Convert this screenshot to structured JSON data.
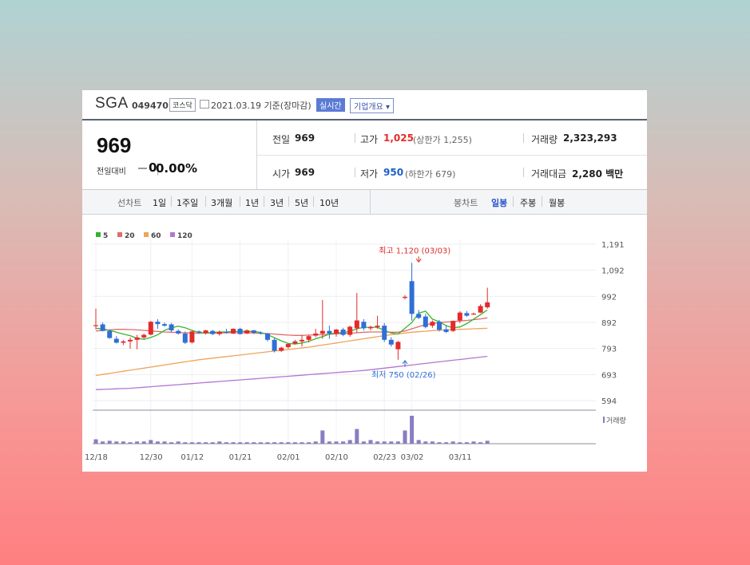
{
  "stock": {
    "name": "SGA",
    "code": "049470",
    "market": "코스닥",
    "date": "2021.03.19 기준(장마감)",
    "realtime_label": "실시간",
    "company_label": "기업개요 ▾"
  },
  "quote": {
    "current": "969",
    "change_label": "전일대비",
    "change_value": "0",
    "change_pct": "0.00%",
    "prev_label": "전일",
    "prev": "969",
    "high_label": "고가",
    "high": "1,025",
    "upper_limit": "(상한가 1,255)",
    "volume_label": "거래량",
    "volume": "2,323,293",
    "open_label": "시가",
    "open": "969",
    "low_label": "저가",
    "low": "950",
    "lower_limit": "(하한가 679)",
    "amount_label": "거래대금",
    "amount": "2,280 백만"
  },
  "tabs": {
    "line_label": "선차트",
    "line_periods": [
      "1일",
      "1주일",
      "3개월",
      "1년",
      "3년",
      "5년",
      "10년"
    ],
    "candle_label": "봉차트",
    "candle_periods": [
      "일봉",
      "주봉",
      "월봉"
    ],
    "candle_active": 0
  },
  "colors": {
    "up": "#e42a2a",
    "down": "#2f6fd6",
    "ma5": "#37b32e",
    "ma20": "#e36a6a",
    "ma60": "#f0a35a",
    "ma120": "#b177d3",
    "volume": "#8a7dc0"
  },
  "chart_data": {
    "type": "candlestick",
    "y_ticks": [
      "1,191",
      "1,092",
      "992",
      "892",
      "793",
      "693",
      "594"
    ],
    "ylim": [
      594,
      1191
    ],
    "legend": [
      {
        "label": "5",
        "color": "#37b32e"
      },
      {
        "label": "20",
        "color": "#e36a6a"
      },
      {
        "label": "60",
        "color": "#f0a35a"
      },
      {
        "label": "120",
        "color": "#b177d3"
      }
    ],
    "x_labels": [
      {
        "label": "12/18",
        "index": 0
      },
      {
        "label": "12/30",
        "index": 8
      },
      {
        "label": "01/12",
        "index": 14
      },
      {
        "label": "01/21",
        "index": 21
      },
      {
        "label": "02/01",
        "index": 28
      },
      {
        "label": "02/10",
        "index": 35
      },
      {
        "label": "02/23",
        "index": 42
      },
      {
        "label": "03/02",
        "index": 46
      },
      {
        "label": "03/11",
        "index": 53
      }
    ],
    "annotations": {
      "high_label": "최고 1,120 (03/03)",
      "high_value": 1120,
      "high_index": 47,
      "low_label": "최저 750 (02/26)",
      "low_value": 750,
      "low_index": 45
    },
    "volume_label": "거래량",
    "candles": [
      {
        "o": 880,
        "h": 945,
        "l": 866,
        "c": 882
      },
      {
        "o": 885,
        "h": 892,
        "l": 858,
        "c": 860
      },
      {
        "o": 860,
        "h": 865,
        "l": 830,
        "c": 833
      },
      {
        "o": 830,
        "h": 840,
        "l": 812,
        "c": 815
      },
      {
        "o": 815,
        "h": 825,
        "l": 806,
        "c": 820
      },
      {
        "o": 820,
        "h": 835,
        "l": 792,
        "c": 826
      },
      {
        "o": 826,
        "h": 845,
        "l": 790,
        "c": 835
      },
      {
        "o": 835,
        "h": 850,
        "l": 830,
        "c": 845
      },
      {
        "o": 846,
        "h": 898,
        "l": 843,
        "c": 895
      },
      {
        "o": 895,
        "h": 905,
        "l": 868,
        "c": 886
      },
      {
        "o": 886,
        "h": 892,
        "l": 876,
        "c": 880
      },
      {
        "o": 885,
        "h": 890,
        "l": 856,
        "c": 862
      },
      {
        "o": 860,
        "h": 866,
        "l": 846,
        "c": 850
      },
      {
        "o": 850,
        "h": 858,
        "l": 810,
        "c": 815
      },
      {
        "o": 816,
        "h": 862,
        "l": 812,
        "c": 858
      },
      {
        "o": 858,
        "h": 862,
        "l": 850,
        "c": 854
      },
      {
        "o": 852,
        "h": 864,
        "l": 846,
        "c": 862
      },
      {
        "o": 860,
        "h": 864,
        "l": 844,
        "c": 848
      },
      {
        "o": 848,
        "h": 862,
        "l": 842,
        "c": 856
      },
      {
        "o": 856,
        "h": 868,
        "l": 850,
        "c": 855
      },
      {
        "o": 850,
        "h": 870,
        "l": 848,
        "c": 868
      },
      {
        "o": 868,
        "h": 872,
        "l": 846,
        "c": 848
      },
      {
        "o": 850,
        "h": 866,
        "l": 848,
        "c": 862
      },
      {
        "o": 862,
        "h": 864,
        "l": 848,
        "c": 853
      },
      {
        "o": 853,
        "h": 858,
        "l": 846,
        "c": 850
      },
      {
        "o": 850,
        "h": 852,
        "l": 820,
        "c": 826
      },
      {
        "o": 826,
        "h": 834,
        "l": 778,
        "c": 784
      },
      {
        "o": 784,
        "h": 800,
        "l": 780,
        "c": 796
      },
      {
        "o": 798,
        "h": 812,
        "l": 792,
        "c": 810
      },
      {
        "o": 812,
        "h": 826,
        "l": 808,
        "c": 820
      },
      {
        "o": 820,
        "h": 844,
        "l": 800,
        "c": 826
      },
      {
        "o": 826,
        "h": 844,
        "l": 816,
        "c": 840
      },
      {
        "o": 842,
        "h": 868,
        "l": 836,
        "c": 850
      },
      {
        "o": 850,
        "h": 978,
        "l": 830,
        "c": 860
      },
      {
        "o": 860,
        "h": 880,
        "l": 830,
        "c": 850
      },
      {
        "o": 850,
        "h": 868,
        "l": 838,
        "c": 865
      },
      {
        "o": 865,
        "h": 872,
        "l": 840,
        "c": 845
      },
      {
        "o": 845,
        "h": 880,
        "l": 838,
        "c": 876
      },
      {
        "o": 870,
        "h": 1005,
        "l": 852,
        "c": 900
      },
      {
        "o": 895,
        "h": 905,
        "l": 862,
        "c": 870
      },
      {
        "o": 870,
        "h": 880,
        "l": 862,
        "c": 875
      },
      {
        "o": 875,
        "h": 918,
        "l": 868,
        "c": 880
      },
      {
        "o": 880,
        "h": 890,
        "l": 818,
        "c": 826
      },
      {
        "o": 826,
        "h": 836,
        "l": 800,
        "c": 808
      },
      {
        "o": 790,
        "h": 822,
        "l": 750,
        "c": 818
      },
      {
        "o": 986,
        "h": 996,
        "l": 980,
        "c": 990
      },
      {
        "o": 1050,
        "h": 1120,
        "l": 900,
        "c": 925
      },
      {
        "o": 925,
        "h": 940,
        "l": 905,
        "c": 910
      },
      {
        "o": 915,
        "h": 925,
        "l": 870,
        "c": 875
      },
      {
        "o": 880,
        "h": 900,
        "l": 872,
        "c": 895
      },
      {
        "o": 895,
        "h": 902,
        "l": 858,
        "c": 864
      },
      {
        "o": 866,
        "h": 880,
        "l": 852,
        "c": 856
      },
      {
        "o": 860,
        "h": 900,
        "l": 856,
        "c": 898
      },
      {
        "o": 900,
        "h": 935,
        "l": 890,
        "c": 930
      },
      {
        "o": 928,
        "h": 936,
        "l": 914,
        "c": 918
      },
      {
        "o": 924,
        "h": 930,
        "l": 922,
        "c": 926
      },
      {
        "o": 930,
        "h": 962,
        "l": 928,
        "c": 955
      },
      {
        "o": 950,
        "h": 1025,
        "l": 945,
        "c": 969
      }
    ],
    "ma5": [
      870,
      868,
      862,
      855,
      848,
      842,
      832,
      828,
      835,
      845,
      862,
      872,
      878,
      872,
      862,
      854,
      852,
      854,
      856,
      856,
      858,
      858,
      858,
      858,
      854,
      846,
      834,
      822,
      812,
      810,
      814,
      820,
      830,
      838,
      848,
      852,
      854,
      858,
      868,
      874,
      874,
      874,
      862,
      852,
      848,
      870,
      892,
      928,
      935,
      905,
      895,
      880,
      872,
      875,
      888,
      905,
      922,
      940
    ],
    "ma20": [
      860,
      862,
      864,
      866,
      866,
      865,
      864,
      862,
      860,
      858,
      856,
      855,
      854,
      853,
      852,
      851,
      852,
      852,
      852,
      853,
      853,
      853,
      853,
      852,
      851,
      850,
      848,
      846,
      844,
      843,
      843,
      844,
      845,
      846,
      847,
      849,
      850,
      851,
      853,
      855,
      856,
      856,
      856,
      855,
      855,
      860,
      868,
      876,
      884,
      888,
      892,
      894,
      896,
      898,
      900,
      903,
      906,
      910
    ],
    "ma60": [
      690,
      694,
      698,
      702,
      706,
      710,
      714,
      718,
      722,
      726,
      730,
      734,
      738,
      742,
      746,
      750,
      753,
      756,
      759,
      762,
      765,
      768,
      771,
      774,
      777,
      780,
      783,
      786,
      789,
      792,
      795,
      798,
      802,
      806,
      810,
      814,
      818,
      822,
      826,
      830,
      834,
      838,
      842,
      846,
      849,
      852,
      855,
      857,
      859,
      861,
      863,
      864,
      865,
      866,
      867,
      868,
      869,
      870
    ],
    "ma120": [
      636,
      637,
      638,
      639,
      640,
      641,
      643,
      645,
      647,
      649,
      651,
      653,
      655,
      657,
      659,
      661,
      663,
      665,
      667,
      669,
      671,
      673,
      675,
      677,
      679,
      681,
      683,
      685,
      687,
      689,
      691,
      693,
      695,
      697,
      699,
      701,
      703,
      705,
      707,
      709,
      712,
      715,
      718,
      721,
      724,
      727,
      730,
      733,
      736,
      739,
      742,
      745,
      748,
      751,
      754,
      757,
      760,
      763
    ],
    "volume": [
      6,
      3,
      4,
      3,
      3,
      2,
      3,
      3,
      5,
      3,
      3,
      2,
      3,
      2,
      2,
      2,
      2,
      2,
      3,
      2,
      2,
      2,
      2,
      2,
      2,
      2,
      2,
      2,
      2,
      2,
      2,
      2,
      3,
      18,
      3,
      3,
      3,
      5,
      20,
      3,
      5,
      3,
      3,
      3,
      3,
      18,
      38,
      5,
      3,
      3,
      2,
      2,
      3,
      2,
      2,
      3,
      2,
      4
    ]
  }
}
